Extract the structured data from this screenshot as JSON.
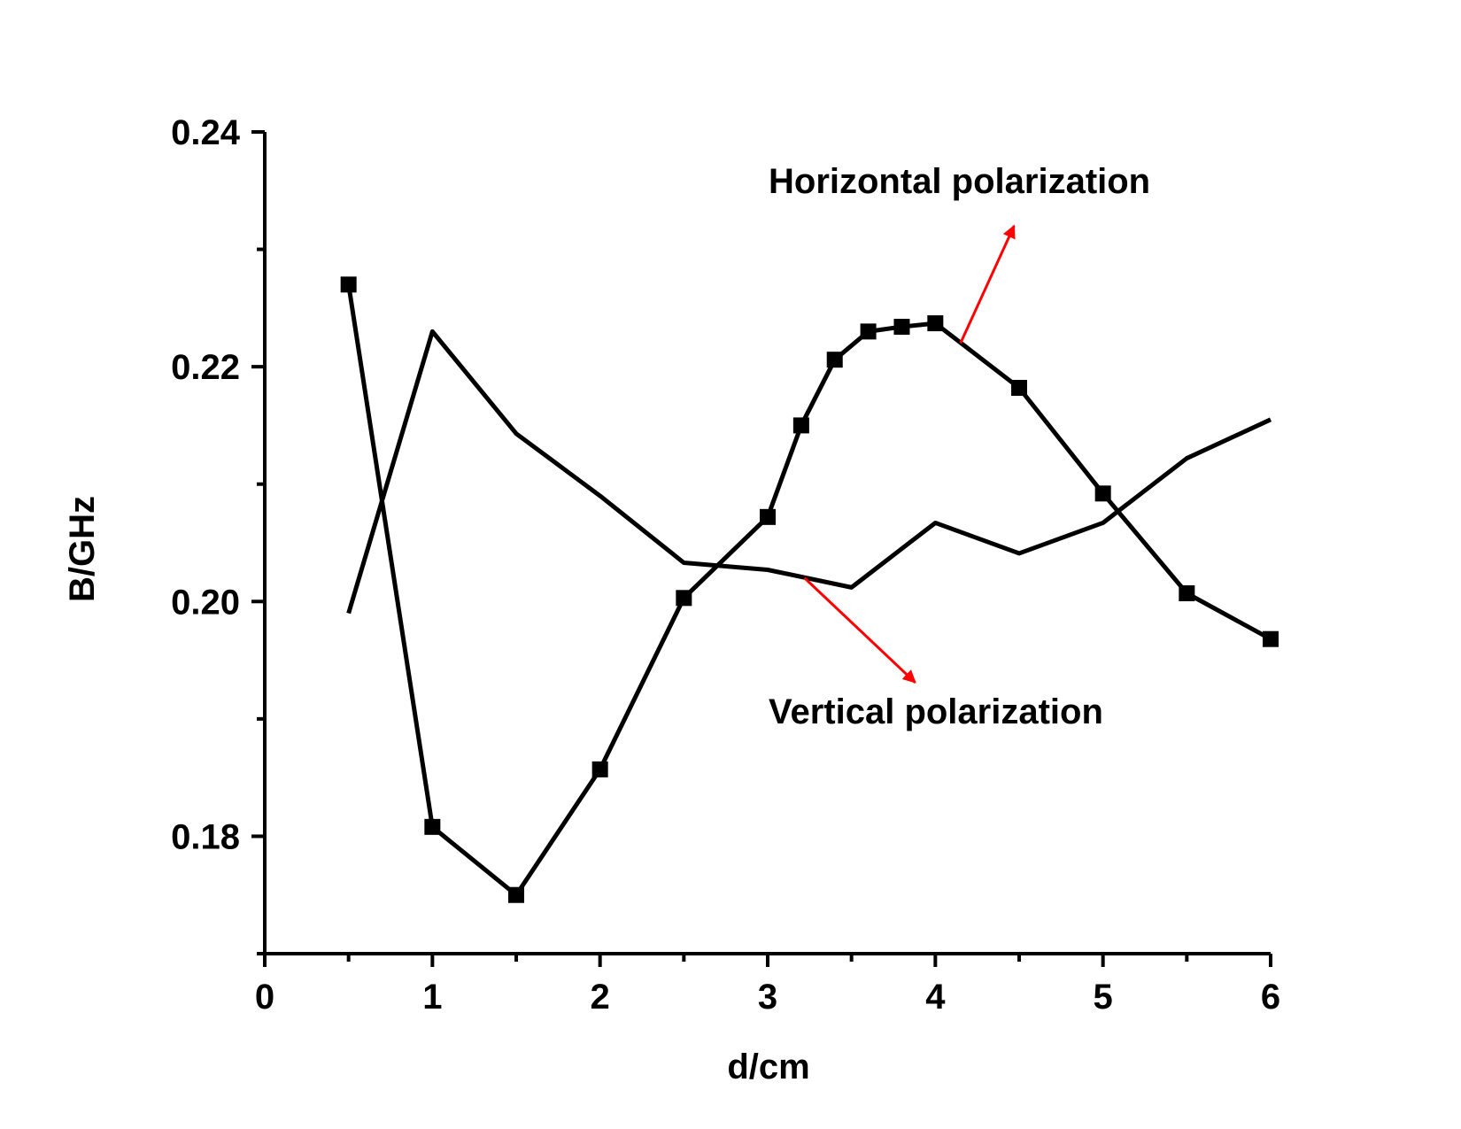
{
  "chart_data": {
    "type": "line",
    "title": "",
    "xlabel": "d/cm",
    "ylabel": "B/GHz",
    "xlim": [
      0,
      6
    ],
    "ylim": [
      0.17,
      0.24
    ],
    "x_ticks": [
      "0",
      "1",
      "2",
      "3",
      "4",
      "5",
      "6"
    ],
    "y_ticks": [
      "0.18",
      "0.20",
      "0.22",
      "0.24"
    ],
    "grid": false,
    "legend": "none",
    "series": [
      {
        "marker": "square",
        "color": "#000000",
        "points": [
          [
            0.5,
            0.227
          ],
          [
            1.0,
            0.1808
          ],
          [
            1.5,
            0.175
          ],
          [
            2.0,
            0.1857
          ],
          [
            2.5,
            0.2003
          ],
          [
            3.0,
            0.2072
          ],
          [
            3.2,
            0.215
          ],
          [
            3.4,
            0.2206
          ],
          [
            3.6,
            0.223
          ],
          [
            3.8,
            0.2234
          ],
          [
            4.0,
            0.2237
          ],
          [
            4.5,
            0.2182
          ],
          [
            5.0,
            0.2092
          ],
          [
            5.5,
            0.2007
          ],
          [
            6.0,
            0.1968
          ]
        ]
      },
      {
        "marker": "none",
        "color": "#000000",
        "points": [
          [
            0.5,
            0.199
          ],
          [
            1.0,
            0.223
          ],
          [
            1.5,
            0.2143
          ],
          [
            2.0,
            0.209
          ],
          [
            2.5,
            0.2033
          ],
          [
            3.0,
            0.2027
          ],
          [
            3.5,
            0.2012
          ],
          [
            4.0,
            0.2067
          ],
          [
            4.5,
            0.2041
          ],
          [
            5.0,
            0.2067
          ],
          [
            5.5,
            0.2122
          ],
          [
            6.0,
            0.2155
          ]
        ]
      }
    ],
    "annotations": [
      {
        "text": "Horizontal polarization",
        "arrow_from": [
          4.15,
          0.222
        ],
        "arrow_to": [
          4.47,
          0.232
        ],
        "arrow_color": "#ff0000"
      },
      {
        "text": "Vertical polarization",
        "arrow_from": [
          3.22,
          0.202
        ],
        "arrow_to": [
          3.88,
          0.1931
        ],
        "arrow_color": "#ff0000"
      }
    ]
  }
}
